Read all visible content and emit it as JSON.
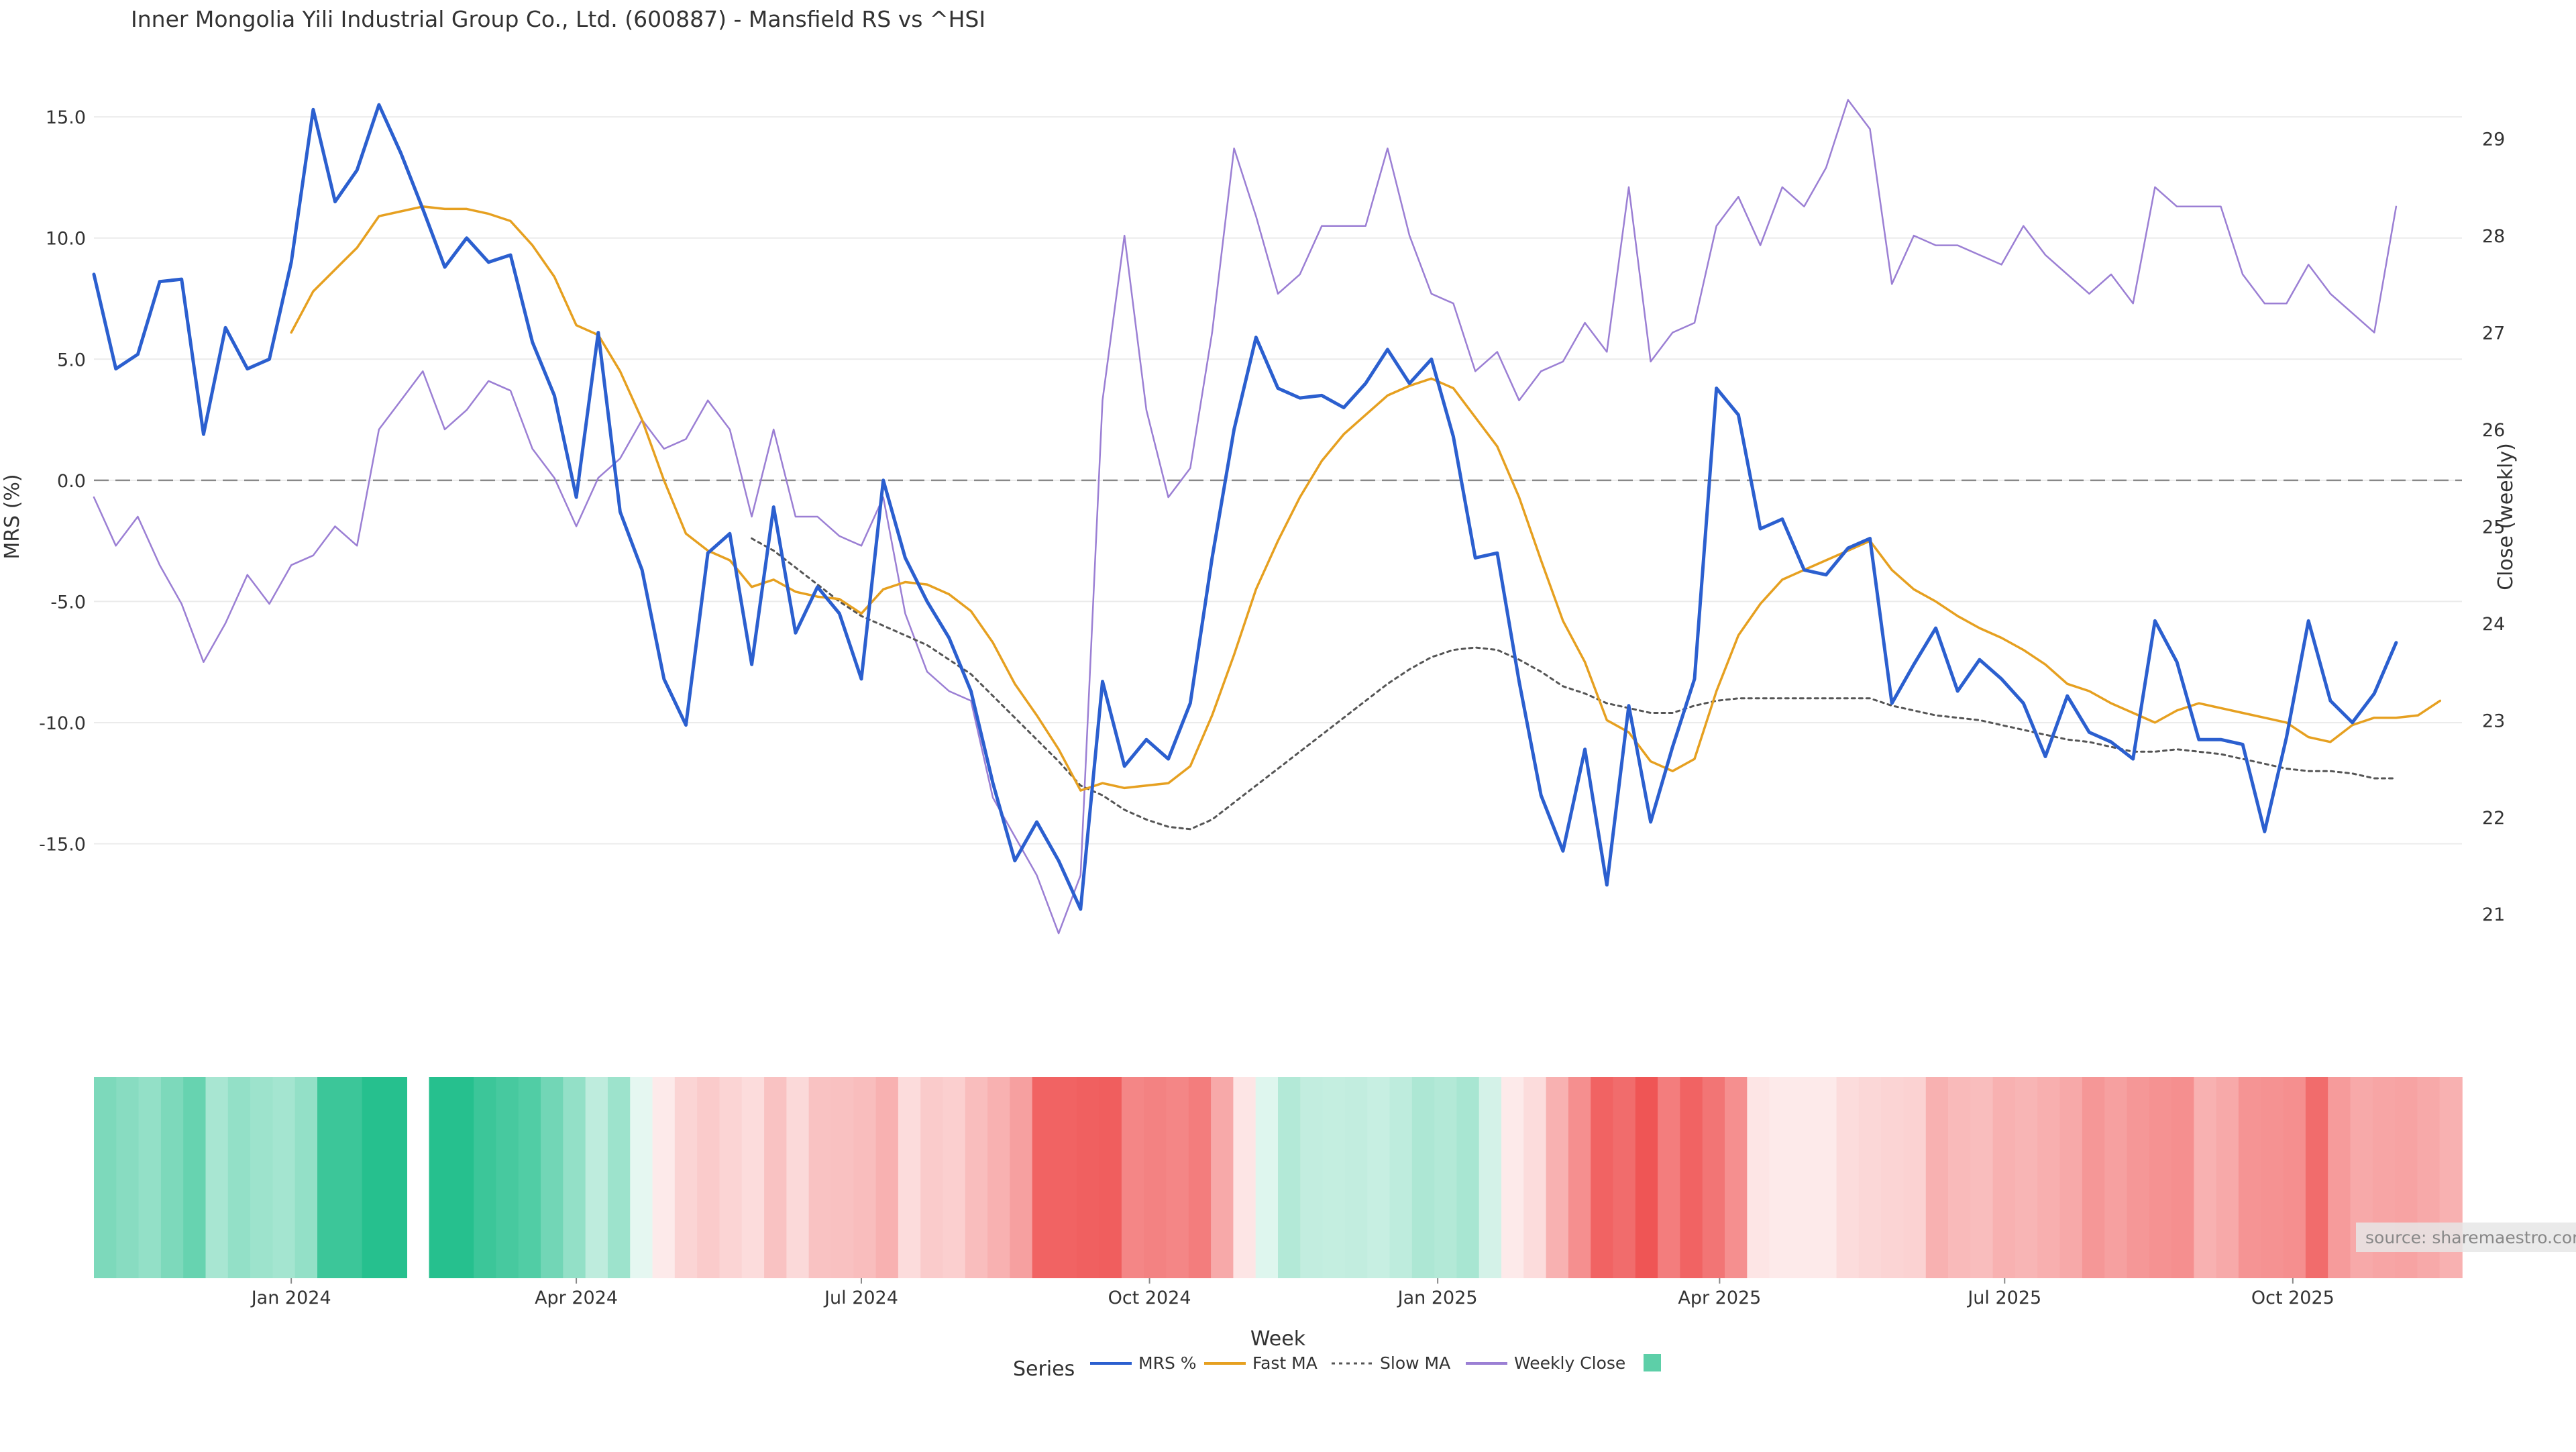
{
  "title": "Inner Mongolia Yili Industrial Group Co., Ltd. (600887) - Mansfield RS vs ^HSI",
  "source_note": "source: sharemaestro.com",
  "colors": {
    "mrs": "#2b5fcf",
    "fast_ma": "#e6a020",
    "slow_ma": "#555555",
    "weekly_close": "#9b7fd4",
    "zero_line": "#888888",
    "grid": "#ebebeb",
    "heat_green": "#26c08e",
    "heat_red": "#ef5252"
  },
  "chart_data": {
    "type": "line",
    "title": "Inner Mongolia Yili Industrial Group Co., Ltd. (600887) - Mansfield RS vs ^HSI",
    "xlabel": "Week",
    "ylabel": "MRS (%)",
    "y2label": "Close (weekly)",
    "ylim": [
      -19.5,
      16.5
    ],
    "y2lim": [
      20.6,
      29.6
    ],
    "x_start": "2023-10-30",
    "x_end": "2025-11-24",
    "yticks": [
      "15.0",
      "10.0",
      "5.0",
      "0.0",
      "-5.0",
      "-10.0",
      "-15.0"
    ],
    "yticks_values": [
      15,
      10,
      5,
      0,
      -5,
      -10,
      -15
    ],
    "y2ticks": [
      "29",
      "28",
      "27",
      "26",
      "25",
      "24",
      "23",
      "22",
      "21"
    ],
    "y2ticks_values": [
      29,
      28,
      27,
      26,
      25,
      24,
      23,
      22,
      21
    ],
    "xticks": [
      "Jan 2024",
      "Apr 2024",
      "Jul 2024",
      "Oct 2024",
      "Jan 2025",
      "Apr 2025",
      "Jul 2025",
      "Oct 2025"
    ],
    "xticks_dates": [
      "2024-01-01",
      "2024-04-01",
      "2024-07-01",
      "2024-10-01",
      "2025-01-01",
      "2025-04-01",
      "2025-07-01",
      "2025-10-01"
    ],
    "zero_line": 0,
    "grid": true,
    "legend_position": "bottom-center",
    "legend_title": "Series",
    "series": [
      {
        "name": "MRS %",
        "axis": "left",
        "style": "solid",
        "values": [
          8.5,
          4.6,
          5.2,
          8.2,
          8.3,
          1.9,
          6.3,
          4.6,
          5.0,
          9.0,
          15.3,
          11.5,
          12.8,
          15.5,
          13.5,
          11.2,
          8.8,
          10.0,
          9.0,
          9.3,
          5.7,
          3.5,
          -0.7,
          6.1,
          -1.3,
          -3.7,
          -8.2,
          -10.1,
          -3.0,
          -2.2,
          -7.6,
          -1.1,
          -6.3,
          -4.4,
          -5.5,
          -8.2,
          0.0,
          -3.2,
          -5.0,
          -6.5,
          -8.7,
          -12.5,
          -15.7,
          -14.1,
          -15.7,
          -17.7,
          -8.3,
          -11.8,
          -10.7,
          -11.5,
          -9.2,
          -3.2,
          2.1,
          5.9,
          3.8,
          3.4,
          3.5,
          3.0,
          4.0,
          5.4,
          4.0,
          5.0,
          1.8,
          -3.2,
          -3.0,
          -8.3,
          -13.0,
          -15.3,
          -11.1,
          -16.7,
          -9.3,
          -14.1,
          -11.0,
          -8.2,
          3.8,
          2.7,
          -2.0,
          -1.6,
          -3.7,
          -3.9,
          -2.8,
          -2.4,
          -9.2,
          -7.6,
          -6.1,
          -8.7,
          -7.4,
          -8.2,
          -9.2,
          -11.4,
          -8.9,
          -10.4,
          -10.8,
          -11.5,
          -5.8,
          -7.5,
          -10.7,
          -10.7,
          -10.9,
          -14.5,
          -10.6,
          -5.8,
          -9.1,
          -10.0,
          -8.8,
          -6.7
        ]
      },
      {
        "name": "Fast MA",
        "axis": "left",
        "style": "solid",
        "values": [
          null,
          null,
          null,
          null,
          null,
          null,
          null,
          null,
          null,
          6.1,
          7.8,
          8.7,
          9.6,
          10.9,
          11.1,
          11.3,
          11.2,
          11.2,
          11.0,
          10.7,
          9.7,
          8.4,
          6.4,
          6.0,
          4.5,
          2.5,
          0.0,
          -2.2,
          -2.9,
          -3.3,
          -4.4,
          -4.1,
          -4.6,
          -4.8,
          -4.9,
          -5.5,
          -4.5,
          -4.2,
          -4.3,
          -4.7,
          -5.4,
          -6.7,
          -8.4,
          -9.7,
          -11.1,
          -12.8,
          -12.5,
          -12.7,
          -12.6,
          -12.5,
          -11.8,
          -9.7,
          -7.2,
          -4.5,
          -2.5,
          -0.7,
          0.8,
          1.9,
          2.7,
          3.5,
          3.9,
          4.2,
          3.8,
          2.6,
          1.4,
          -0.7,
          -3.3,
          -5.8,
          -7.5,
          -9.9,
          -10.4,
          -11.6,
          -12.0,
          -11.5,
          -8.7,
          -6.4,
          -5.1,
          -4.1,
          -3.7,
          -3.3,
          -2.9,
          -2.5,
          -3.7,
          -4.5,
          -5.0,
          -5.6,
          -6.1,
          -6.5,
          -7.0,
          -7.6,
          -8.4,
          -8.7,
          -9.2,
          -9.6,
          -10.0,
          -9.5,
          -9.2,
          -9.4,
          -9.6,
          -9.8,
          -10.0,
          -10.6,
          -10.8,
          -10.1,
          -9.8,
          -9.8,
          -9.7,
          -9.1
        ]
      },
      {
        "name": "Slow MA",
        "axis": "left",
        "style": "dotted",
        "values": [
          null,
          null,
          null,
          null,
          null,
          null,
          null,
          null,
          null,
          null,
          null,
          null,
          null,
          null,
          null,
          null,
          null,
          null,
          null,
          null,
          null,
          null,
          null,
          null,
          null,
          null,
          null,
          null,
          null,
          null,
          -2.4,
          -2.9,
          -3.6,
          -4.3,
          -5.0,
          -5.6,
          -6.0,
          -6.4,
          -6.8,
          -7.4,
          -8.0,
          -8.9,
          -9.8,
          -10.7,
          -11.6,
          -12.6,
          -13.0,
          -13.6,
          -14.0,
          -14.3,
          -14.4,
          -14.0,
          -13.3,
          -12.6,
          -11.9,
          -11.2,
          -10.5,
          -9.8,
          -9.1,
          -8.4,
          -7.8,
          -7.3,
          -7.0,
          -6.9,
          -7.0,
          -7.4,
          -7.9,
          -8.5,
          -8.8,
          -9.2,
          -9.4,
          -9.6,
          -9.6,
          -9.3,
          -9.1,
          -9.0,
          -9.0,
          -9.0,
          -9.0,
          -9.0,
          -9.0,
          -9.0,
          -9.3,
          -9.5,
          -9.7,
          -9.8,
          -9.9,
          -10.1,
          -10.3,
          -10.5,
          -10.7,
          -10.8,
          -11.0,
          -11.2,
          -11.2,
          -11.1,
          -11.2,
          -11.3,
          -11.5,
          -11.7,
          -11.9,
          -12.0,
          -12.0,
          -12.1,
          -12.3,
          -12.3
        ]
      },
      {
        "name": "Weekly Close",
        "axis": "right",
        "style": "thin",
        "values": [
          25.3,
          24.8,
          25.1,
          24.6,
          24.2,
          23.6,
          24.0,
          24.5,
          24.2,
          24.6,
          24.7,
          25.0,
          24.8,
          26.0,
          26.3,
          26.6,
          26.0,
          26.2,
          26.5,
          26.4,
          25.8,
          25.5,
          25.0,
          25.5,
          25.7,
          26.1,
          25.8,
          25.9,
          26.3,
          26.0,
          25.1,
          26.0,
          25.1,
          25.1,
          24.9,
          24.8,
          25.3,
          24.1,
          23.5,
          23.3,
          23.2,
          22.2,
          21.8,
          21.4,
          20.8,
          21.4,
          26.3,
          28.0,
          26.2,
          25.3,
          25.6,
          27.0,
          28.9,
          28.2,
          27.4,
          27.6,
          28.1,
          28.1,
          28.1,
          28.9,
          28.0,
          27.4,
          27.3,
          26.6,
          26.8,
          26.3,
          26.6,
          26.7,
          27.1,
          26.8,
          28.5,
          26.7,
          27.0,
          27.1,
          28.1,
          28.4,
          27.9,
          28.5,
          28.3,
          28.7,
          29.4,
          29.1,
          27.5,
          28.0,
          27.9,
          27.9,
          27.8,
          27.7,
          28.1,
          27.8,
          27.6,
          27.4,
          27.6,
          27.3,
          28.5,
          28.3,
          28.3,
          28.3,
          27.6,
          27.3,
          27.3,
          27.7,
          27.4,
          27.2,
          27.0,
          28.3
        ]
      }
    ],
    "heatmap": {
      "description": "MRS % heat strip, one cell per week",
      "cell_values": [
        6.0,
        5.5,
        5.0,
        6.0,
        7.0,
        4.0,
        5.0,
        4.5,
        4.2,
        5.0,
        9.0,
        9.0,
        10.5,
        12.0,
        null,
        10.8,
        10.2,
        9.0,
        8.5,
        8.0,
        6.5,
        5.0,
        3.0,
        4.5,
        1.0,
        -0.8,
        -2.5,
        -3.0,
        -2.5,
        -2.0,
        -3.5,
        -2.2,
        -3.5,
        -3.6,
        -3.8,
        -4.5,
        -2.0,
        -3.0,
        -2.8,
        -3.8,
        -4.5,
        -5.5,
        -9.0,
        -9.0,
        -9.2,
        -9.3,
        -7.0,
        -7.2,
        -7.0,
        -7.5,
        -5.0,
        -1.5,
        1.5,
        3.5,
        2.8,
        2.7,
        2.8,
        2.6,
        3.0,
        3.8,
        3.5,
        4.0,
        2.0,
        -1.2,
        -2.0,
        -4.5,
        -6.5,
        -9.0,
        -8.5,
        -9.8,
        -7.5,
        -9.0,
        -8.0,
        -6.5,
        -1.5,
        -0.5,
        -1.0,
        -1.2,
        -2.0,
        -2.3,
        -2.5,
        -2.6,
        -4.5,
        -4.0,
        -3.8,
        -4.5,
        -4.3,
        -4.6,
        -5.0,
        -6.0,
        -5.5,
        -6.0,
        -6.3,
        -6.5,
        -4.5,
        -5.0,
        -6.2,
        -6.3,
        -6.5,
        -8.5,
        -5.8,
        -5.0,
        -5.2,
        -5.3,
        -5.0,
        -4.5
      ]
    },
    "legend": [
      {
        "label": "MRS %",
        "swatch": "line",
        "color": "#2b5fcf"
      },
      {
        "label": "Fast MA",
        "swatch": "line",
        "color": "#e6a020"
      },
      {
        "label": "Slow MA",
        "swatch": "dotted",
        "color": "#555555"
      },
      {
        "label": "Weekly Close",
        "swatch": "line",
        "color": "#9b7fd4"
      },
      {
        "label": "",
        "swatch": "square",
        "color": "#5dcfa8"
      }
    ]
  }
}
